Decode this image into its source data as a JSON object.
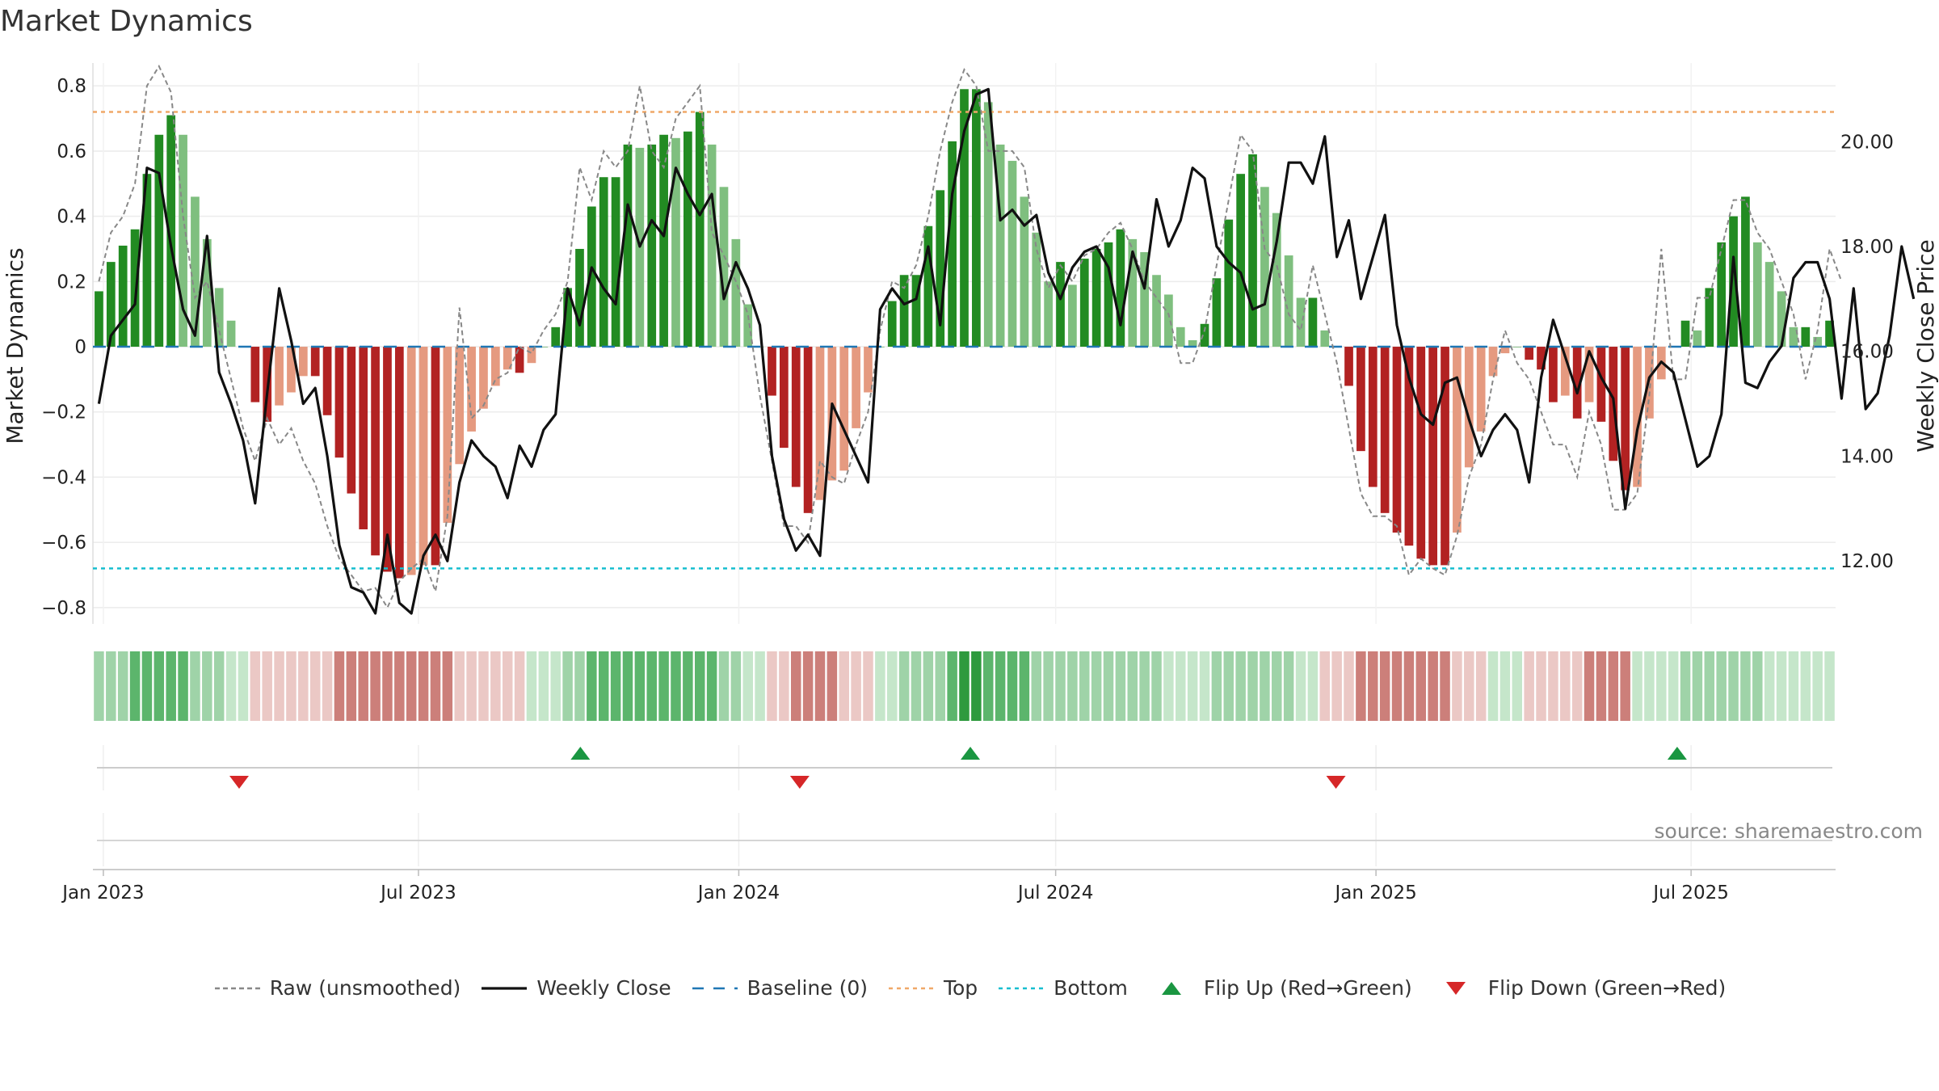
{
  "title": "Market Dynamics",
  "source": "source: sharemaestro.com",
  "colors": {
    "green_strong": "#228b22",
    "green_light": "#7fbf7f",
    "red_strong": "#b22222",
    "red_light": "#e59a80",
    "baseline": "#1f77b4",
    "top": "#f0a868",
    "bottom": "#17becf",
    "raw": "#888888",
    "close": "#111111",
    "flip_up": "#1a9641",
    "flip_down": "#d62728"
  },
  "legend": [
    {
      "key": "raw",
      "label": "Raw (unsmoothed)"
    },
    {
      "key": "close",
      "label": "Weekly Close"
    },
    {
      "key": "baseline",
      "label": "Baseline (0)"
    },
    {
      "key": "top",
      "label": "Top"
    },
    {
      "key": "bottom",
      "label": "Bottom"
    },
    {
      "key": "flip_up",
      "label": "Flip Up (Red→Green)"
    },
    {
      "key": "flip_down",
      "label": "Flip Down (Green→Red)"
    }
  ],
  "chart_data": {
    "type": "bar",
    "ylabel_left": "Market Dynamics",
    "ylabel_right": "Weekly Close Price",
    "ylim_left": [
      -0.85,
      0.87
    ],
    "ylim_right": [
      10.8,
      21.5
    ],
    "yticks_left": [
      "0.8",
      "0.6",
      "0.4",
      "0.2",
      "0",
      "−0.2",
      "−0.4",
      "−0.6",
      "−0.8"
    ],
    "yticks_left_values": [
      0.8,
      0.6,
      0.4,
      0.2,
      0,
      -0.2,
      -0.4,
      -0.6,
      -0.8
    ],
    "yticks_right": [
      "20.00",
      "18.00",
      "16.00",
      "14.00",
      "12.00"
    ],
    "yticks_right_values": [
      20,
      18,
      16,
      14,
      12
    ],
    "x_start": "2022-12-26",
    "x_end": "2025-09-22",
    "xticks": [
      {
        "date": "2023-01-01",
        "label": "Jan 2023"
      },
      {
        "date": "2023-07-01",
        "label": "Jul 2023"
      },
      {
        "date": "2024-01-01",
        "label": "Jan 2024"
      },
      {
        "date": "2024-07-01",
        "label": "Jul 2024"
      },
      {
        "date": "2025-01-01",
        "label": "Jan 2025"
      },
      {
        "date": "2025-07-01",
        "label": "Jul 2025"
      }
    ],
    "top_level": 0.72,
    "bottom_level": -0.68,
    "momentum": [
      0.17,
      0.26,
      0.31,
      0.36,
      0.53,
      0.65,
      0.71,
      0.65,
      0.46,
      0.33,
      0.18,
      0.08,
      0.0,
      -0.17,
      -0.23,
      -0.18,
      -0.14,
      -0.09,
      -0.09,
      -0.21,
      -0.34,
      -0.45,
      -0.56,
      -0.64,
      -0.69,
      -0.71,
      -0.7,
      -0.67,
      -0.67,
      -0.54,
      -0.36,
      -0.26,
      -0.19,
      -0.12,
      -0.07,
      -0.08,
      -0.05,
      0.0,
      0.06,
      0.18,
      0.3,
      0.43,
      0.52,
      0.52,
      0.62,
      0.61,
      0.62,
      0.65,
      0.64,
      0.66,
      0.72,
      0.62,
      0.49,
      0.33,
      0.13,
      0.0,
      -0.15,
      -0.31,
      -0.43,
      -0.51,
      -0.47,
      -0.41,
      -0.38,
      -0.25,
      -0.14,
      0.0,
      0.14,
      0.22,
      0.22,
      0.37,
      0.48,
      0.63,
      0.79,
      0.79,
      0.75,
      0.62,
      0.57,
      0.46,
      0.35,
      0.2,
      0.26,
      0.19,
      0.27,
      0.3,
      0.32,
      0.36,
      0.33,
      0.29,
      0.22,
      0.16,
      0.06,
      0.02,
      0.07,
      0.21,
      0.39,
      0.53,
      0.59,
      0.49,
      0.41,
      0.28,
      0.15,
      0.15,
      0.05,
      0.0,
      -0.12,
      -0.32,
      -0.43,
      -0.51,
      -0.57,
      -0.61,
      -0.65,
      -0.67,
      -0.67,
      -0.57,
      -0.37,
      -0.26,
      -0.09,
      -0.02,
      0.0,
      -0.04,
      -0.07,
      -0.17,
      -0.15,
      -0.22,
      -0.17,
      -0.23,
      -0.35,
      -0.44,
      -0.43,
      -0.22,
      -0.1,
      0.0,
      0.08,
      0.05,
      0.18,
      0.32,
      0.4,
      0.46,
      0.32,
      0.26,
      0.17,
      0.06,
      0.06,
      0.03,
      0.08
    ],
    "raw": [
      0.2,
      0.35,
      0.4,
      0.5,
      0.8,
      0.86,
      0.78,
      0.4,
      0.15,
      0.2,
      0.05,
      -0.1,
      -0.25,
      -0.35,
      -0.22,
      -0.3,
      -0.25,
      -0.35,
      -0.42,
      -0.55,
      -0.65,
      -0.7,
      -0.75,
      -0.74,
      -0.8,
      -0.72,
      -0.68,
      -0.65,
      -0.75,
      -0.52,
      0.12,
      -0.22,
      -0.18,
      -0.1,
      -0.08,
      0.0,
      -0.02,
      0.05,
      0.1,
      0.2,
      0.55,
      0.45,
      0.6,
      0.55,
      0.6,
      0.8,
      0.6,
      0.55,
      0.7,
      0.75,
      0.8,
      0.35,
      0.28,
      0.2,
      0.1,
      -0.15,
      -0.35,
      -0.55,
      -0.55,
      -0.6,
      -0.35,
      -0.4,
      -0.42,
      -0.3,
      -0.2,
      0.05,
      0.2,
      0.18,
      0.25,
      0.4,
      0.6,
      0.75,
      0.85,
      0.8,
      0.6,
      0.6,
      0.6,
      0.55,
      0.3,
      0.18,
      0.25,
      0.2,
      0.28,
      0.3,
      0.35,
      0.38,
      0.3,
      0.2,
      0.15,
      0.1,
      -0.05,
      -0.05,
      0.05,
      0.25,
      0.45,
      0.65,
      0.6,
      0.3,
      0.25,
      0.1,
      0.05,
      0.25,
      0.1,
      -0.05,
      -0.25,
      -0.45,
      -0.52,
      -0.52,
      -0.55,
      -0.7,
      -0.65,
      -0.68,
      -0.7,
      -0.58,
      -0.4,
      -0.3,
      -0.1,
      0.05,
      -0.05,
      -0.1,
      -0.2,
      -0.3,
      -0.3,
      -0.4,
      -0.2,
      -0.3,
      -0.5,
      -0.5,
      -0.45,
      -0.15,
      0.3,
      -0.1,
      -0.1,
      0.15,
      0.15,
      0.3,
      0.45,
      0.45,
      0.35,
      0.3,
      0.2,
      0.1,
      -0.1,
      0.05,
      0.3,
      0.2
    ],
    "close": [
      15.0,
      16.3,
      16.6,
      16.9,
      19.5,
      19.4,
      18.0,
      16.8,
      16.3,
      18.2,
      15.6,
      15.0,
      14.3,
      13.1,
      15.2,
      17.2,
      16.2,
      15.0,
      15.3,
      14.0,
      12.3,
      11.5,
      11.4,
      11.0,
      12.5,
      11.2,
      11.0,
      12.1,
      12.5,
      12.0,
      13.5,
      14.3,
      14.0,
      13.8,
      13.2,
      14.2,
      13.8,
      14.5,
      14.8,
      17.2,
      16.5,
      17.6,
      17.2,
      16.9,
      18.8,
      18.0,
      18.5,
      18.2,
      19.5,
      19.0,
      18.6,
      19.0,
      17.0,
      17.7,
      17.2,
      16.5,
      14.0,
      12.8,
      12.2,
      12.5,
      12.1,
      15.0,
      14.5,
      14.0,
      13.5,
      16.8,
      17.2,
      16.9,
      17.0,
      18.0,
      16.5,
      19.0,
      20.2,
      20.9,
      21.0,
      18.5,
      18.7,
      18.4,
      18.6,
      17.5,
      17.0,
      17.6,
      17.9,
      18.0,
      17.6,
      16.5,
      17.9,
      17.2,
      18.9,
      18.0,
      18.5,
      19.5,
      19.3,
      18.0,
      17.7,
      17.5,
      16.8,
      16.9,
      18.1,
      19.6,
      19.6,
      19.2,
      20.1,
      17.8,
      18.5,
      17.0,
      17.8,
      18.6,
      16.5,
      15.5,
      14.8,
      14.6,
      15.4,
      15.5,
      14.7,
      14.0,
      14.5,
      14.8,
      14.5,
      13.5,
      15.5,
      16.6,
      15.9,
      15.2,
      16.0,
      15.5,
      15.1,
      13.0,
      14.5,
      15.5,
      15.8,
      15.6,
      14.7,
      13.8,
      14.0,
      14.8,
      17.8,
      15.4,
      15.3,
      15.8,
      16.1,
      17.4,
      17.7,
      17.7,
      17.0,
      15.1,
      17.2,
      14.9,
      15.2,
      16.3,
      18.0,
      17.0
    ],
    "bands": [
      1,
      1,
      1,
      2,
      2,
      2,
      2,
      2,
      1,
      1,
      1,
      0,
      0,
      -1,
      -1,
      -1,
      -1,
      -1,
      -1,
      -1,
      -2,
      -2,
      -2,
      -2,
      -2,
      -2,
      -2,
      -2,
      -2,
      -2,
      -1,
      -1,
      -1,
      -1,
      -1,
      -1,
      0,
      0,
      0,
      1,
      1,
      2,
      2,
      2,
      2,
      2,
      2,
      2,
      2,
      2,
      2,
      2,
      1,
      1,
      0,
      0,
      -1,
      -1,
      -2,
      -2,
      -2,
      -2,
      -1,
      -1,
      -1,
      0,
      0,
      1,
      1,
      1,
      1,
      2,
      3,
      3,
      2,
      2,
      2,
      2,
      1,
      1,
      1,
      1,
      1,
      1,
      1,
      1,
      1,
      1,
      1,
      0,
      0,
      0,
      0,
      1,
      1,
      1,
      1,
      1,
      1,
      1,
      0,
      0,
      -1,
      -1,
      -1,
      -2,
      -2,
      -2,
      -2,
      -2,
      -2,
      -2,
      -2,
      -1,
      -1,
      -1,
      0,
      0,
      0,
      -1,
      -1,
      -1,
      -1,
      -1,
      -2,
      -2,
      -2,
      -2,
      0,
      0,
      0,
      0,
      1,
      1,
      1,
      1,
      1,
      1,
      1,
      0,
      0,
      0,
      0,
      0,
      0
    ],
    "flips": [
      {
        "date": "2023-03-20",
        "dir": "down"
      },
      {
        "date": "2023-10-02",
        "dir": "up"
      },
      {
        "date": "2024-02-05",
        "dir": "down"
      },
      {
        "date": "2024-05-13",
        "dir": "up"
      },
      {
        "date": "2024-12-09",
        "dir": "down"
      },
      {
        "date": "2025-06-23",
        "dir": "up"
      }
    ]
  }
}
